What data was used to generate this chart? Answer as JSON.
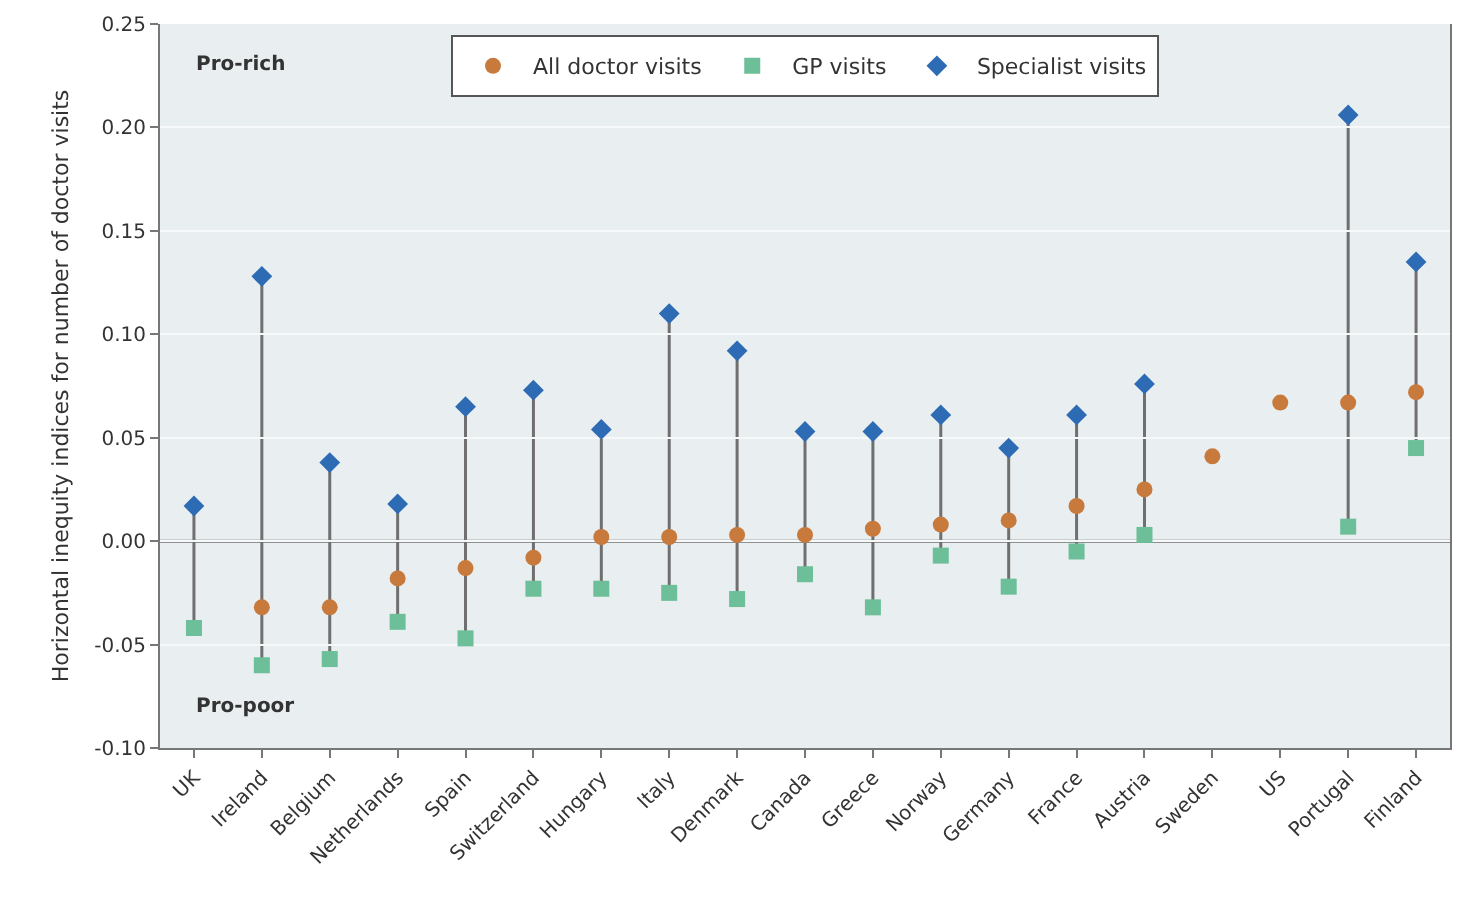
{
  "chart_data": {
    "type": "scatter",
    "ylabel": "Horizontal inequity indices for number of doctor visits",
    "categories": [
      "UK",
      "Ireland",
      "Belgium",
      "Netherlands",
      "Spain",
      "Switzerland",
      "Hungary",
      "Italy",
      "Denmark",
      "Canada",
      "Greece",
      "Norway",
      "Germany",
      "France",
      "Austria",
      "Sweden",
      "US",
      "Portugal",
      "Finland"
    ],
    "series": [
      {
        "name": "All doctor visits",
        "color": "#c87a3c",
        "marker": "circle",
        "values": [
          null,
          -0.032,
          -0.032,
          -0.018,
          -0.013,
          -0.008,
          0.002,
          0.002,
          0.003,
          0.003,
          0.006,
          0.008,
          0.01,
          0.017,
          0.025,
          0.041,
          0.067,
          0.067,
          0.072
        ]
      },
      {
        "name": "GP visits",
        "color": "#6cbf98",
        "marker": "square",
        "values": [
          -0.042,
          -0.06,
          -0.057,
          -0.039,
          -0.047,
          -0.023,
          -0.023,
          -0.025,
          -0.028,
          -0.016,
          -0.032,
          -0.007,
          -0.022,
          -0.005,
          0.003,
          null,
          null,
          0.007,
          0.045
        ]
      },
      {
        "name": "Specialist visits",
        "color": "#2e6bb5",
        "marker": "diamond",
        "values": [
          0.017,
          0.128,
          0.038,
          0.018,
          0.065,
          0.073,
          0.054,
          0.11,
          0.092,
          0.053,
          0.053,
          0.061,
          0.045,
          0.061,
          0.076,
          null,
          null,
          0.206,
          0.135
        ]
      }
    ],
    "ylim": [
      -0.1,
      0.25
    ],
    "yticks": [
      {
        "value": -0.1,
        "label": "-0.10"
      },
      {
        "value": -0.05,
        "label": "-0.05"
      },
      {
        "value": 0,
        "label": "0.00"
      },
      {
        "value": 0.05,
        "label": "0.05"
      },
      {
        "value": 0.1,
        "label": "0.10"
      },
      {
        "value": 0.15,
        "label": "0.15"
      },
      {
        "value": 0.2,
        "label": "0.20"
      },
      {
        "value": 0.25,
        "label": "0.25"
      }
    ],
    "ref_lines": [
      {
        "axis": "y",
        "value": 0,
        "color": "#707070"
      }
    ],
    "annotations": [
      "Pro-rich",
      "Pro-poor"
    ],
    "grid": "y",
    "legend": "top"
  }
}
